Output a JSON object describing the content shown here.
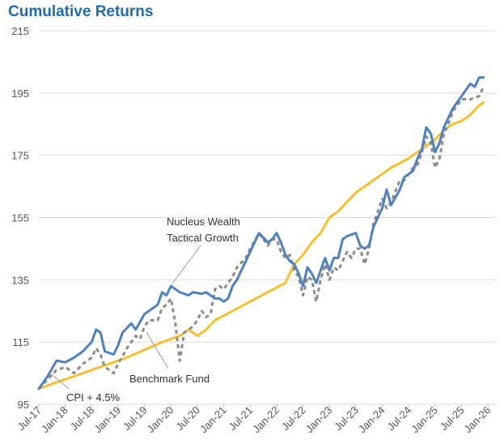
{
  "chart_data": {
    "type": "line",
    "title": "Cumulative Returns",
    "xlabel": "",
    "ylabel": "",
    "ylim": [
      95,
      215
    ],
    "yticks": [
      95,
      115,
      135,
      155,
      175,
      195,
      215
    ],
    "x_tick_labels": [
      "Jul-17",
      "Jan-18",
      "Jul-18",
      "Jan-19",
      "Jul-19",
      "Jan-20",
      "Jul-20",
      "Jan-21",
      "Jul-21",
      "Jan-22",
      "Jul-22",
      "Jan-23",
      "Jul-23",
      "Jan-24",
      "Jul-24",
      "Jan-25",
      "Jul-25",
      "Jan-26"
    ],
    "x_range_months": [
      0,
      104
    ],
    "series": [
      {
        "name": "Nucleus Wealth Tactical Growth",
        "color": "#4f81bd",
        "style": "solid",
        "points": [
          [
            0,
            100
          ],
          [
            2,
            104
          ],
          [
            4,
            109
          ],
          [
            6,
            108.5
          ],
          [
            8,
            110
          ],
          [
            10,
            112
          ],
          [
            12,
            115
          ],
          [
            13,
            119
          ],
          [
            14,
            118
          ],
          [
            15,
            112
          ],
          [
            17,
            111
          ],
          [
            18,
            114
          ],
          [
            19,
            118
          ],
          [
            21,
            121
          ],
          [
            22,
            119
          ],
          [
            24,
            124
          ],
          [
            25,
            125
          ],
          [
            27,
            127
          ],
          [
            28,
            131
          ],
          [
            29,
            130
          ],
          [
            30,
            133
          ],
          [
            32,
            131
          ],
          [
            34,
            130
          ],
          [
            35,
            131
          ],
          [
            37,
            130.5
          ],
          [
            38,
            131
          ],
          [
            40,
            129
          ],
          [
            41,
            129
          ],
          [
            42,
            128
          ],
          [
            43,
            129
          ],
          [
            44,
            133
          ],
          [
            45,
            135
          ],
          [
            47,
            141
          ],
          [
            48,
            144
          ],
          [
            50,
            150
          ],
          [
            52,
            147
          ],
          [
            53,
            148
          ],
          [
            54,
            150
          ],
          [
            55,
            147
          ],
          [
            56,
            143
          ],
          [
            57,
            141
          ],
          [
            58,
            140
          ],
          [
            59,
            137
          ],
          [
            60,
            133
          ],
          [
            61,
            139
          ],
          [
            62,
            137
          ],
          [
            63,
            134
          ],
          [
            64,
            138
          ],
          [
            65,
            142
          ],
          [
            66,
            138
          ],
          [
            67,
            142
          ],
          [
            68,
            142
          ],
          [
            69,
            148
          ],
          [
            70,
            149
          ],
          [
            72,
            150
          ],
          [
            73,
            146
          ],
          [
            74,
            145
          ],
          [
            75,
            146
          ],
          [
            76,
            152
          ],
          [
            78,
            158
          ],
          [
            79,
            164
          ],
          [
            80,
            159
          ],
          [
            82,
            164
          ],
          [
            83,
            168
          ],
          [
            85,
            170
          ],
          [
            86,
            174
          ],
          [
            87,
            177
          ],
          [
            88,
            184
          ],
          [
            89,
            182
          ],
          [
            90,
            176
          ],
          [
            91,
            179
          ],
          [
            92,
            184
          ],
          [
            94,
            190
          ],
          [
            96,
            194
          ],
          [
            97,
            196
          ],
          [
            98,
            198
          ],
          [
            99,
            197
          ],
          [
            100,
            200
          ],
          [
            101,
            200
          ]
        ]
      },
      {
        "name": "Benchmark Fund",
        "color": "#8c8c8c",
        "style": "dashed",
        "points": [
          [
            0,
            100
          ],
          [
            2,
            103
          ],
          [
            4,
            106
          ],
          [
            6,
            107
          ],
          [
            8,
            105
          ],
          [
            10,
            108
          ],
          [
            12,
            110
          ],
          [
            13,
            113
          ],
          [
            14,
            111
          ],
          [
            15,
            107
          ],
          [
            16,
            106
          ],
          [
            17,
            105
          ],
          [
            18,
            108
          ],
          [
            20,
            113
          ],
          [
            22,
            117
          ],
          [
            23,
            116
          ],
          [
            24,
            120
          ],
          [
            25,
            122
          ],
          [
            27,
            122
          ],
          [
            28,
            126
          ],
          [
            29,
            127
          ],
          [
            30,
            129
          ],
          [
            31,
            121
          ],
          [
            32,
            109
          ],
          [
            33,
            118
          ],
          [
            34,
            119
          ],
          [
            35,
            120
          ],
          [
            36,
            122
          ],
          [
            37,
            125
          ],
          [
            38,
            123
          ],
          [
            39,
            124
          ],
          [
            40,
            132
          ],
          [
            41,
            133
          ],
          [
            42,
            132
          ],
          [
            43,
            134
          ],
          [
            44,
            136
          ],
          [
            45,
            139
          ],
          [
            47,
            142
          ],
          [
            48,
            145
          ],
          [
            50,
            150
          ],
          [
            51,
            148
          ],
          [
            52,
            146
          ],
          [
            53,
            148
          ],
          [
            54,
            148
          ],
          [
            55,
            144
          ],
          [
            56,
            142
          ],
          [
            57,
            143
          ],
          [
            58,
            138
          ],
          [
            59,
            136
          ],
          [
            60,
            130
          ],
          [
            61,
            136
          ],
          [
            62,
            135
          ],
          [
            63,
            128
          ],
          [
            64,
            135
          ],
          [
            65,
            140
          ],
          [
            66,
            135
          ],
          [
            67,
            139
          ],
          [
            68,
            138
          ],
          [
            69,
            141
          ],
          [
            70,
            144
          ],
          [
            71,
            142
          ],
          [
            72,
            145
          ],
          [
            73,
            145
          ],
          [
            74,
            140
          ],
          [
            75,
            145
          ],
          [
            76,
            153
          ],
          [
            77,
            157
          ],
          [
            78,
            161
          ],
          [
            79,
            158
          ],
          [
            80,
            160
          ],
          [
            82,
            167
          ],
          [
            83,
            167
          ],
          [
            85,
            171
          ],
          [
            86,
            172
          ],
          [
            87,
            176
          ],
          [
            88,
            181
          ],
          [
            89,
            179
          ],
          [
            90,
            171
          ],
          [
            91,
            174
          ],
          [
            92,
            182
          ],
          [
            93,
            185
          ],
          [
            94,
            189
          ],
          [
            96,
            193
          ],
          [
            98,
            193
          ],
          [
            100,
            194
          ],
          [
            101,
            197
          ]
        ]
      },
      {
        "name": "CPI + 4.5%",
        "color": "#f5c02f",
        "style": "solid",
        "points": [
          [
            0,
            100
          ],
          [
            4,
            102
          ],
          [
            8,
            104
          ],
          [
            12,
            106
          ],
          [
            16,
            108
          ],
          [
            20,
            110
          ],
          [
            24,
            112.5
          ],
          [
            28,
            115
          ],
          [
            32,
            117
          ],
          [
            34,
            119
          ],
          [
            36,
            117
          ],
          [
            38,
            119
          ],
          [
            40,
            122
          ],
          [
            44,
            125
          ],
          [
            48,
            128
          ],
          [
            52,
            131
          ],
          [
            56,
            134
          ],
          [
            58,
            140
          ],
          [
            60,
            143
          ],
          [
            62,
            147
          ],
          [
            64,
            150
          ],
          [
            66,
            155
          ],
          [
            68,
            157
          ],
          [
            70,
            160
          ],
          [
            72,
            163
          ],
          [
            74,
            165
          ],
          [
            76,
            167
          ],
          [
            78,
            169
          ],
          [
            80,
            171
          ],
          [
            84,
            174
          ],
          [
            86,
            176
          ],
          [
            88,
            178
          ],
          [
            90,
            180
          ],
          [
            92,
            183
          ],
          [
            94,
            185
          ],
          [
            96,
            186
          ],
          [
            98,
            188
          ],
          [
            100,
            191
          ],
          [
            101,
            192
          ]
        ]
      }
    ],
    "annotations": [
      {
        "text": [
          "Nucleus Wealth",
          "Tactical Growth"
        ],
        "series": "Nucleus Wealth Tactical Growth"
      },
      {
        "text": [
          "Benchmark Fund"
        ],
        "series": "Benchmark Fund"
      },
      {
        "text": [
          "CPI + 4.5%"
        ],
        "series": "CPI + 4.5%"
      }
    ]
  }
}
